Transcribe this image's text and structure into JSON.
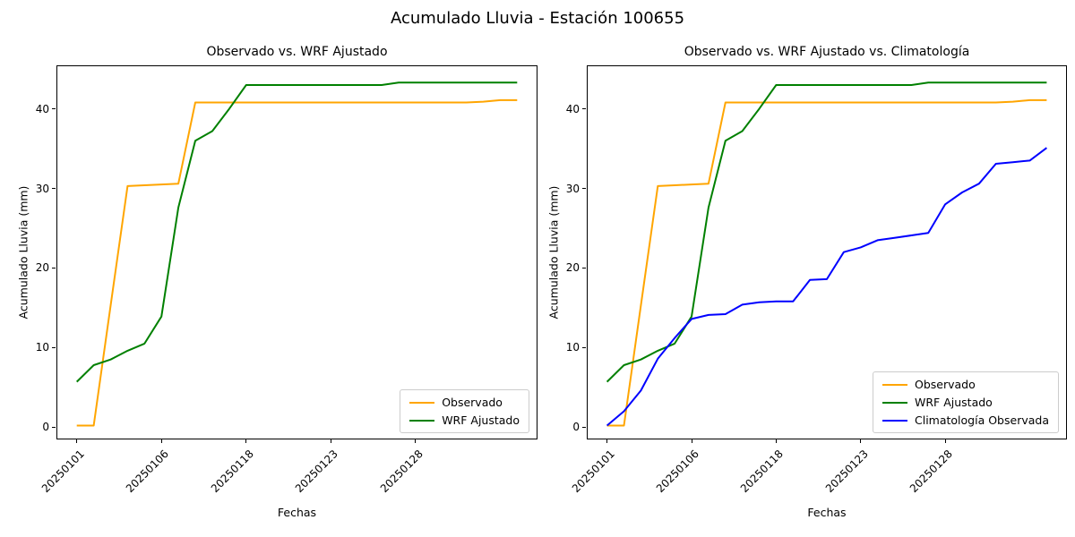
{
  "figure": {
    "suptitle": "Acumulado Lluvia - Estación 100655",
    "background": "#ffffff"
  },
  "chart_data": [
    {
      "type": "line",
      "title": "Observado vs. WRF Ajustado",
      "xlabel": "Fechas",
      "ylabel": "Acumulado Lluvia (mm)",
      "x_tick_labels": [
        "20250101",
        "20250106",
        "20250118",
        "20250123",
        "20250128"
      ],
      "x_tick_indices": [
        0,
        5,
        10,
        15,
        20
      ],
      "x_tick_rotation_deg": 45,
      "y_ticks": [
        0,
        10,
        20,
        30,
        40
      ],
      "ylim": [
        -1.54,
        45.47
      ],
      "grid": false,
      "legend_position": "lower right",
      "n_points": 27,
      "series": [
        {
          "name": "Observado",
          "color": "#FFA500",
          "values": [
            0.2,
            0.2,
            15.3,
            30.3,
            30.4,
            30.5,
            30.6,
            40.8,
            40.8,
            40.8,
            40.8,
            40.8,
            40.8,
            40.8,
            40.8,
            40.8,
            40.8,
            40.8,
            40.8,
            40.8,
            40.8,
            40.8,
            40.8,
            40.8,
            40.9,
            41.1,
            41.1
          ]
        },
        {
          "name": "WRF Ajustado",
          "color": "#008000",
          "values": [
            5.7,
            7.8,
            8.5,
            9.6,
            10.5,
            13.9,
            27.6,
            36.0,
            37.2,
            40.0,
            43.0,
            43.0,
            43.0,
            43.0,
            43.0,
            43.0,
            43.0,
            43.0,
            43.0,
            43.3,
            43.3,
            43.3,
            43.3,
            43.3,
            43.3,
            43.3,
            43.3
          ]
        }
      ]
    },
    {
      "type": "line",
      "title": "Observado vs. WRF Ajustado vs. Climatología",
      "xlabel": "Fechas",
      "ylabel": "Acumulado Lluvia (mm)",
      "x_tick_labels": [
        "20250101",
        "20250106",
        "20250118",
        "20250123",
        "20250128"
      ],
      "x_tick_indices": [
        0,
        5,
        10,
        15,
        20
      ],
      "x_tick_rotation_deg": 45,
      "y_ticks": [
        0,
        10,
        20,
        30,
        40
      ],
      "ylim": [
        -1.54,
        45.47
      ],
      "grid": false,
      "legend_position": "lower right",
      "n_points": 27,
      "series": [
        {
          "name": "Observado",
          "color": "#FFA500",
          "values": [
            0.2,
            0.2,
            15.3,
            30.3,
            30.4,
            30.5,
            30.6,
            40.8,
            40.8,
            40.8,
            40.8,
            40.8,
            40.8,
            40.8,
            40.8,
            40.8,
            40.8,
            40.8,
            40.8,
            40.8,
            40.8,
            40.8,
            40.8,
            40.8,
            40.9,
            41.1,
            41.1
          ]
        },
        {
          "name": "WRF Ajustado",
          "color": "#008000",
          "values": [
            5.7,
            7.8,
            8.5,
            9.6,
            10.5,
            13.9,
            27.6,
            36.0,
            37.2,
            40.0,
            43.0,
            43.0,
            43.0,
            43.0,
            43.0,
            43.0,
            43.0,
            43.0,
            43.0,
            43.3,
            43.3,
            43.3,
            43.3,
            43.3,
            43.3,
            43.3,
            43.3
          ]
        },
        {
          "name": "Climatología Observada",
          "color": "#0000FF",
          "values": [
            0.2,
            2.0,
            4.6,
            8.6,
            11.2,
            13.6,
            14.1,
            14.2,
            15.4,
            15.7,
            15.8,
            15.8,
            18.5,
            18.6,
            22.0,
            22.6,
            23.5,
            23.8,
            24.1,
            24.4,
            28.0,
            29.5,
            30.6,
            33.1,
            33.3,
            33.5,
            35.1
          ]
        }
      ]
    }
  ]
}
